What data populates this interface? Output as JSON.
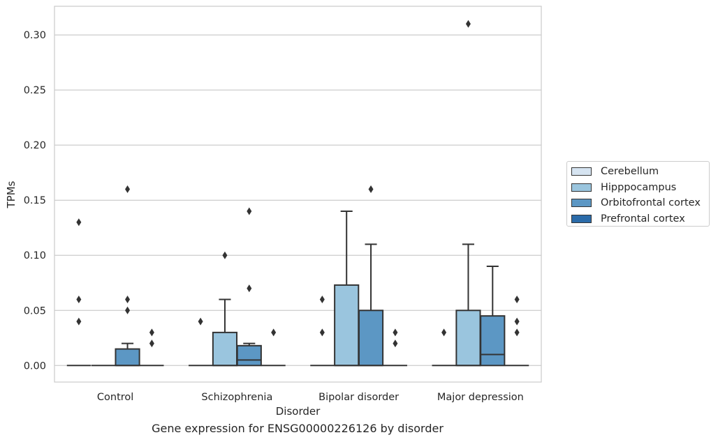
{
  "chart_data": {
    "type": "box",
    "title": "",
    "caption": "Gene expression for ENSG00000226126 by disorder",
    "xlabel": "Disorder",
    "ylabel": "TPMs",
    "ylim": [
      -0.015,
      0.326
    ],
    "yticks": [
      0.0,
      0.05,
      0.1,
      0.15,
      0.2,
      0.25,
      0.3
    ],
    "ytick_labels": [
      "0.00",
      "0.05",
      "0.10",
      "0.15",
      "0.20",
      "0.25",
      "0.30"
    ],
    "categories": [
      "Control",
      "Schizophrenia",
      "Bipolar disorder",
      "Major depression"
    ],
    "grid": "horizontal",
    "legend_position": "right",
    "series": [
      {
        "name": "Cerebellum",
        "color": "#d6e4f1",
        "boxes": [
          {
            "q1": 0,
            "median": 0,
            "q3": 0,
            "whislo": 0,
            "whishi": 0,
            "fliers": [
              0.04,
              0.06,
              0.13
            ]
          },
          {
            "q1": 0,
            "median": 0,
            "q3": 0,
            "whislo": 0,
            "whishi": 0,
            "fliers": [
              0.04
            ]
          },
          {
            "q1": 0,
            "median": 0,
            "q3": 0,
            "whislo": 0,
            "whishi": 0,
            "fliers": [
              0.03,
              0.06
            ]
          },
          {
            "q1": 0,
            "median": 0,
            "q3": 0,
            "whislo": 0,
            "whishi": 0,
            "fliers": [
              0.03
            ]
          }
        ]
      },
      {
        "name": "Hipppocampus",
        "color": "#9ac5de",
        "boxes": [
          {
            "q1": 0,
            "median": 0,
            "q3": 0,
            "whislo": 0,
            "whishi": 0,
            "fliers": []
          },
          {
            "q1": 0,
            "median": 0,
            "q3": 0.03,
            "whislo": 0,
            "whishi": 0.06,
            "fliers": [
              0.1
            ]
          },
          {
            "q1": 0,
            "median": 0,
            "q3": 0.073,
            "whislo": 0,
            "whishi": 0.14,
            "fliers": []
          },
          {
            "q1": 0,
            "median": 0,
            "q3": 0.05,
            "whislo": 0,
            "whishi": 0.11,
            "fliers": [
              0.31
            ]
          }
        ]
      },
      {
        "name": "Orbitofrontal cortex",
        "color": "#5c97c4",
        "boxes": [
          {
            "q1": 0,
            "median": 0,
            "q3": 0.015,
            "whislo": 0,
            "whishi": 0.02,
            "fliers": [
              0.05,
              0.06,
              0.16
            ]
          },
          {
            "q1": 0,
            "median": 0.005,
            "q3": 0.018,
            "whislo": 0,
            "whishi": 0.02,
            "fliers": [
              0.07,
              0.14
            ]
          },
          {
            "q1": 0,
            "median": 0,
            "q3": 0.05,
            "whislo": 0,
            "whishi": 0.11,
            "fliers": [
              0.16
            ]
          },
          {
            "q1": 0,
            "median": 0.01,
            "q3": 0.045,
            "whislo": 0,
            "whishi": 0.09,
            "fliers": []
          }
        ]
      },
      {
        "name": "Prefrontal cortex",
        "color": "#2b6ba9",
        "boxes": [
          {
            "q1": 0,
            "median": 0,
            "q3": 0,
            "whislo": 0,
            "whishi": 0,
            "fliers": [
              0.02,
              0.03
            ]
          },
          {
            "q1": 0,
            "median": 0,
            "q3": 0,
            "whislo": 0,
            "whishi": 0,
            "fliers": [
              0.03
            ]
          },
          {
            "q1": 0,
            "median": 0,
            "q3": 0,
            "whislo": 0,
            "whishi": 0,
            "fliers": [
              0.02,
              0.03
            ]
          },
          {
            "q1": 0,
            "median": 0,
            "q3": 0,
            "whislo": 0,
            "whishi": 0,
            "fliers": [
              0.03,
              0.04,
              0.06
            ]
          }
        ]
      }
    ]
  }
}
